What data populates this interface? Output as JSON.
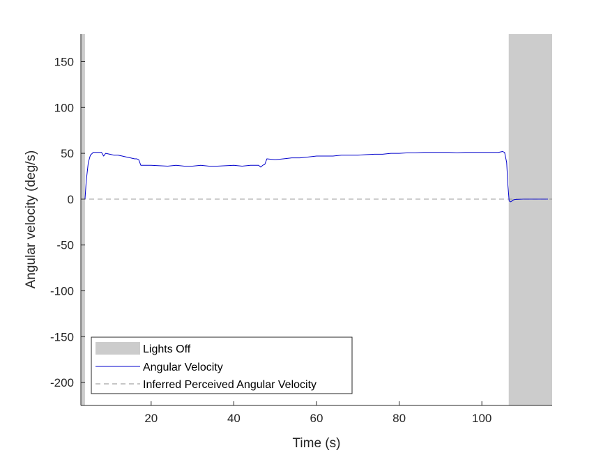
{
  "chart_data": {
    "type": "line",
    "title": "",
    "xlabel": "Time (s)",
    "ylabel": "Angular velocity (deg/s)",
    "xlim": [
      3,
      117
    ],
    "ylim": [
      -225,
      180
    ],
    "xticks": [
      20,
      40,
      60,
      80,
      100
    ],
    "yticks": [
      150,
      100,
      50,
      0,
      -50,
      -100,
      -150,
      -200
    ],
    "grid": false,
    "legend_position": "bottom-left",
    "lights_off_intervals": [
      [
        3,
        4
      ],
      [
        106.5,
        117
      ]
    ],
    "series": [
      {
        "name": "Lights Off",
        "kind": "shaded-region",
        "color": "#cccccc"
      },
      {
        "name": "Angular Velocity",
        "kind": "line",
        "color": "#0000cc",
        "x": [
          4.0,
          4.3,
          4.8,
          5.3,
          6.0,
          7.0,
          8.0,
          8.5,
          9.0,
          10.0,
          11.0,
          12.0,
          13.0,
          14.0,
          15.0,
          16.0,
          16.5,
          17.0,
          17.5,
          18.0,
          20.0,
          22.0,
          24.0,
          26.0,
          28.0,
          30.0,
          32.0,
          34.0,
          36.0,
          38.0,
          40.0,
          42.0,
          44.0,
          46.0,
          46.5,
          47.0,
          47.5,
          48.0,
          50.0,
          52.0,
          54.0,
          56.0,
          58.0,
          60.0,
          62.0,
          64.0,
          66.0,
          68.0,
          70.0,
          72.0,
          74.0,
          76.0,
          78.0,
          80.0,
          82.0,
          84.0,
          86.0,
          88.0,
          90.0,
          92.0,
          94.0,
          96.0,
          98.0,
          100.0,
          102.0,
          104.0,
          105.0,
          105.5,
          106.0,
          106.3,
          106.6,
          107.0,
          107.5,
          108.0,
          110.0,
          112.0,
          114.0,
          116.0
        ],
        "y": [
          0,
          20,
          40,
          48,
          51,
          51,
          51,
          47,
          50,
          49,
          48,
          48,
          47,
          46,
          45,
          44,
          44,
          43,
          37,
          37,
          37,
          36.5,
          36,
          37,
          36,
          36,
          37,
          36,
          36,
          36.5,
          37,
          36,
          37,
          37,
          35,
          37,
          38,
          44,
          43,
          44,
          45,
          45,
          46,
          47,
          47,
          47,
          48,
          48,
          48,
          48.5,
          49,
          49,
          50,
          50,
          50.5,
          50.5,
          51,
          51,
          51,
          51,
          50.5,
          51,
          51,
          51,
          51,
          51,
          52,
          51,
          40,
          15,
          -2,
          -3,
          -1,
          -0.5,
          0,
          0,
          0,
          0
        ]
      },
      {
        "name": "Inferred Perceived Angular Velocity",
        "kind": "dashed-line",
        "color": "#8c8c8c",
        "x": [
          3,
          117
        ],
        "y": [
          0,
          0
        ]
      }
    ]
  }
}
